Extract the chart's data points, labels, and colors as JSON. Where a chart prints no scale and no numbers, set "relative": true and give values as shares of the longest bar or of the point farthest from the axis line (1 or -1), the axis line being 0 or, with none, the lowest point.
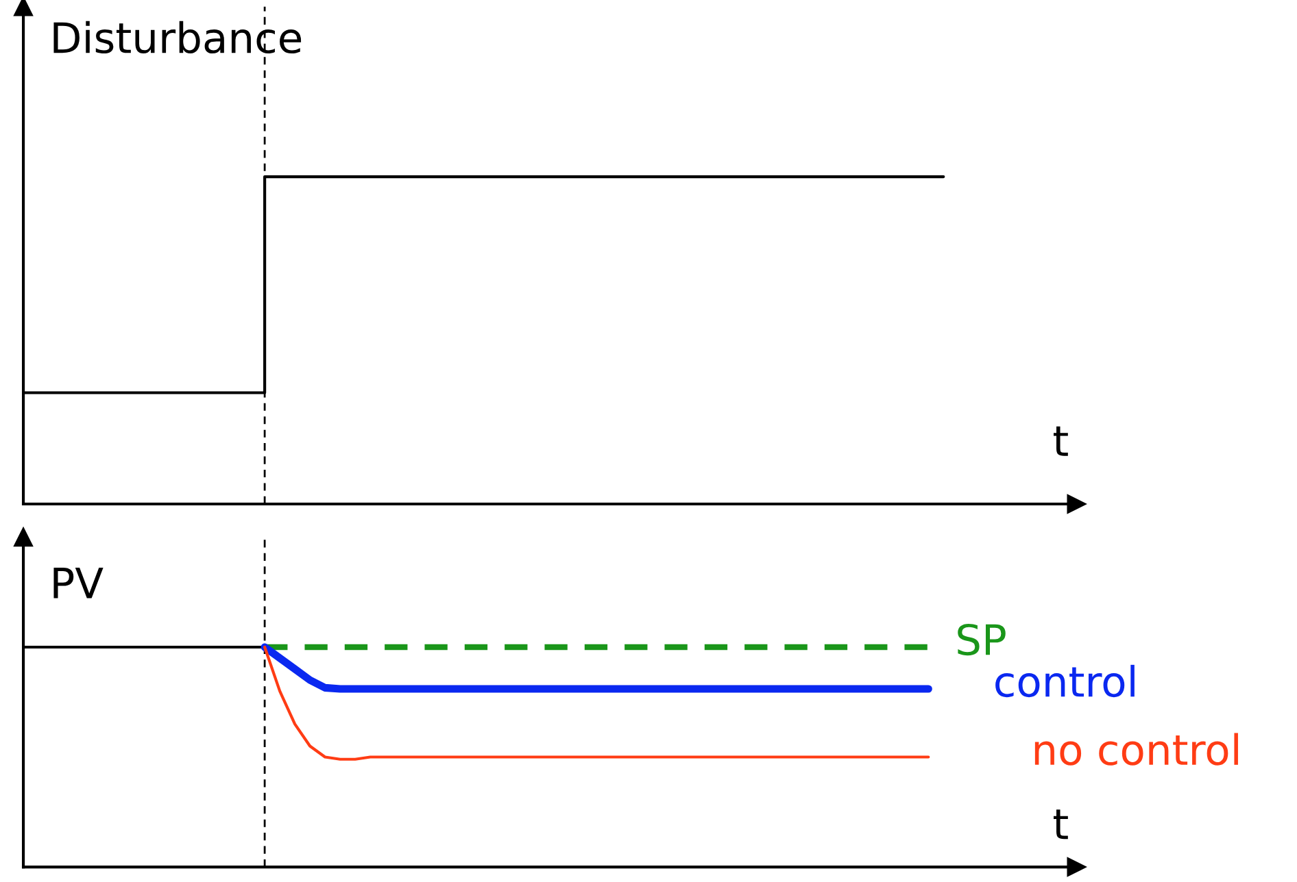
{
  "chart_data": [
    {
      "type": "step",
      "relative": true,
      "ylabel": "Disturbance",
      "xlabel": "t",
      "categories": [
        null,
        null,
        null,
        null,
        null,
        null,
        null,
        null,
        null,
        null,
        null,
        null,
        null,
        null,
        null,
        null,
        null,
        null,
        null,
        null,
        null,
        null,
        null,
        null,
        null,
        null,
        null,
        null,
        null,
        null,
        null,
        null,
        null,
        null,
        null,
        null,
        null,
        null,
        null,
        null,
        null,
        null,
        null,
        null,
        null,
        null,
        null,
        null,
        null,
        null,
        null,
        null,
        null,
        null,
        null,
        null,
        null,
        null,
        null,
        null,
        null,
        null
      ],
      "series": [
        {
          "color": "#000000",
          "line_style": "solid",
          "values": [
            0.34,
            0.34,
            0.34,
            0.34,
            0.34,
            0.34,
            0.34,
            0.34,
            0.34,
            0.34,
            0.34,
            0.34,
            0.34,
            0.34,
            0.34,
            0.34,
            1,
            1,
            1,
            1,
            1,
            1,
            1,
            1,
            1,
            1,
            1,
            1,
            1,
            1,
            1,
            1,
            1,
            1,
            1,
            1,
            1,
            1,
            1,
            1,
            1,
            1,
            1,
            1,
            1,
            1,
            1,
            1,
            1,
            1,
            1,
            1,
            1,
            1,
            1,
            1,
            1,
            1,
            1,
            1,
            1,
            1
          ]
        }
      ]
    },
    {
      "type": "line",
      "relative": true,
      "ylabel": "PV",
      "xlabel": "t",
      "categories": [
        null,
        null,
        null,
        null,
        null,
        null,
        null,
        null,
        null,
        null,
        null,
        null,
        null,
        null,
        null,
        null,
        null,
        null,
        null,
        null,
        null,
        null,
        null,
        null,
        null,
        null,
        null,
        null,
        null,
        null,
        null,
        null,
        null,
        null,
        null,
        null,
        null,
        null,
        null,
        null,
        null,
        null,
        null,
        null,
        null,
        null,
        null,
        null,
        null,
        null,
        null,
        null,
        null,
        null,
        null,
        null,
        null,
        null,
        null,
        null,
        null,
        null
      ],
      "series": [
        {
          "color": "#000000",
          "line_style": "solid",
          "values": [
            1,
            1,
            1,
            1,
            1,
            1,
            1,
            1,
            1,
            1,
            1,
            1,
            1,
            1,
            1,
            1,
            1,
            null,
            null,
            null,
            null,
            null,
            null,
            null,
            null,
            null,
            null,
            null,
            null,
            null,
            null,
            null,
            null,
            null,
            null,
            null,
            null,
            null,
            null,
            null,
            null,
            null,
            null,
            null,
            null,
            null,
            null,
            null,
            null,
            null,
            null,
            null,
            null,
            null,
            null,
            null,
            null,
            null,
            null,
            null,
            null,
            null
          ]
        },
        {
          "name": "SP",
          "color": "#1a961a",
          "line_style": "dashed",
          "values": [
            null,
            null,
            null,
            null,
            null,
            null,
            null,
            null,
            null,
            null,
            null,
            null,
            null,
            null,
            null,
            null,
            1,
            1,
            1,
            1,
            1,
            1,
            1,
            1,
            1,
            1,
            1,
            1,
            1,
            1,
            1,
            1,
            1,
            1,
            1,
            1,
            1,
            1,
            1,
            1,
            1,
            1,
            1,
            1,
            1,
            1,
            1,
            1,
            1,
            1,
            1,
            1,
            1,
            1,
            1,
            1,
            1,
            1,
            1,
            1,
            1,
            null
          ]
        },
        {
          "name": "control",
          "color": "#0a28f0",
          "line_style": "solid",
          "values": [
            null,
            null,
            null,
            null,
            null,
            null,
            null,
            null,
            null,
            null,
            null,
            null,
            null,
            null,
            null,
            null,
            1,
            0.95,
            0.9,
            0.85,
            0.815,
            0.81,
            0.81,
            0.81,
            0.81,
            0.81,
            0.81,
            0.81,
            0.81,
            0.81,
            0.81,
            0.81,
            0.81,
            0.81,
            0.81,
            0.81,
            0.81,
            0.81,
            0.81,
            0.81,
            0.81,
            0.81,
            0.81,
            0.81,
            0.81,
            0.81,
            0.81,
            0.81,
            0.81,
            0.81,
            0.81,
            0.81,
            0.81,
            0.81,
            0.81,
            0.81,
            0.81,
            0.81,
            0.81,
            0.81,
            0.81,
            null
          ]
        },
        {
          "name": "no control",
          "color": "#ff3c14",
          "line_style": "solid",
          "values": [
            null,
            null,
            null,
            null,
            null,
            null,
            null,
            null,
            null,
            null,
            null,
            null,
            null,
            null,
            null,
            null,
            1,
            0.8,
            0.65,
            0.55,
            0.5,
            0.49,
            0.49,
            0.5,
            0.5,
            0.5,
            0.5,
            0.5,
            0.5,
            0.5,
            0.5,
            0.5,
            0.5,
            0.5,
            0.5,
            0.5,
            0.5,
            0.5,
            0.5,
            0.5,
            0.5,
            0.5,
            0.5,
            0.5,
            0.5,
            0.5,
            0.5,
            0.5,
            0.5,
            0.5,
            0.5,
            0.5,
            0.5,
            0.5,
            0.5,
            0.5,
            0.5,
            0.5,
            0.5,
            0.5,
            0.5,
            null
          ]
        }
      ]
    }
  ]
}
